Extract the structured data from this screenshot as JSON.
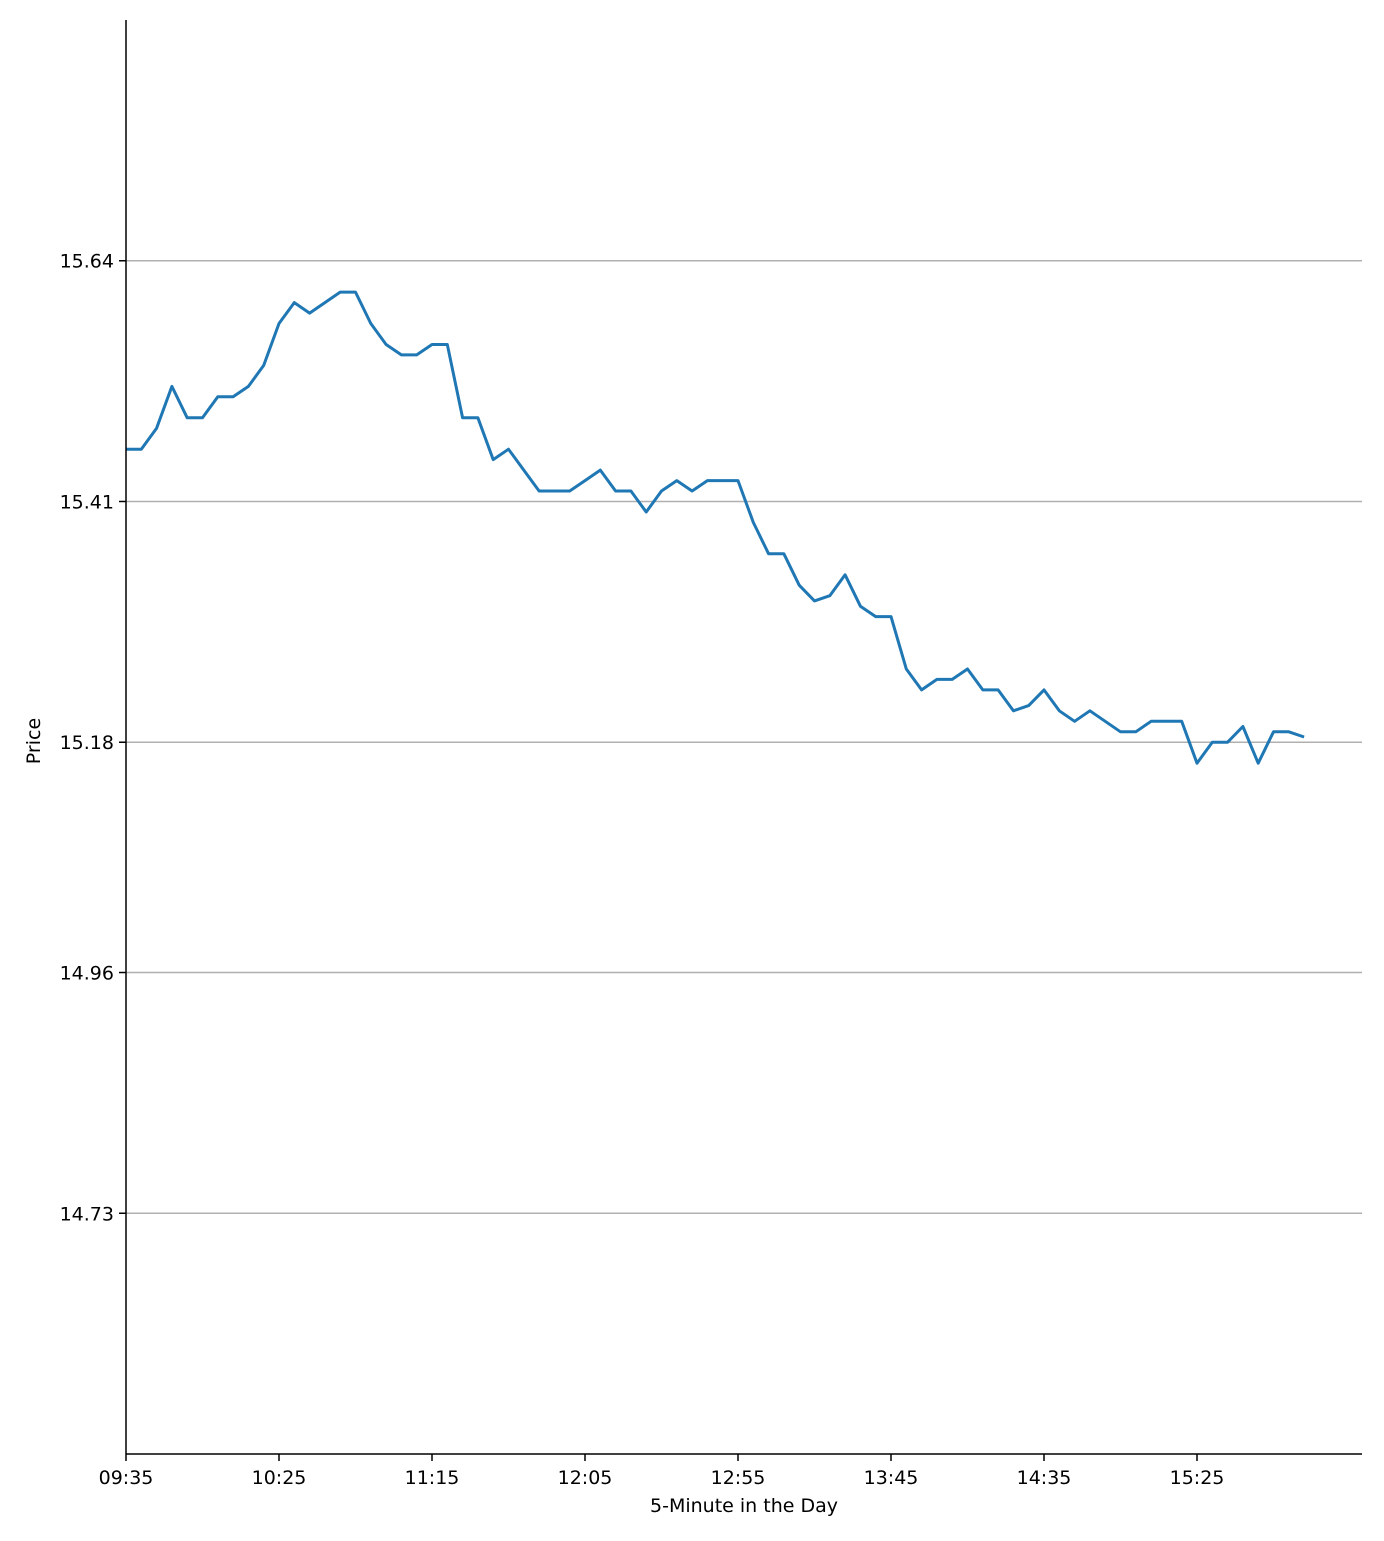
{
  "chart_data": {
    "type": "line",
    "title": "",
    "xlabel": "5-Minute in the Day",
    "ylabel": "Price",
    "grid": "horizontal",
    "ylim": [
      14.5,
      15.87
    ],
    "y_ticks": [
      "14.73",
      "14.96",
      "15.18",
      "15.41",
      "15.64"
    ],
    "x_ticks": [
      "09:35",
      "10:25",
      "11:15",
      "12:05",
      "12:55",
      "13:45",
      "14:35",
      "15:25"
    ],
    "x_tick_index": [
      0,
      10,
      20,
      30,
      40,
      50,
      60,
      70
    ],
    "x_range": [
      0,
      81
    ],
    "line_color": "#1f77b4",
    "series": [
      {
        "x": [
          "09:35",
          "09:40",
          "09:45",
          "09:50",
          "09:55",
          "10:00",
          "10:05",
          "10:10",
          "10:15",
          "10:20",
          "10:25",
          "10:30",
          "10:35",
          "10:40",
          "10:45",
          "10:50",
          "10:55",
          "11:00",
          "11:05",
          "11:10",
          "11:15",
          "11:20",
          "11:25",
          "11:30",
          "11:35",
          "11:40",
          "11:45",
          "11:50",
          "11:55",
          "12:00",
          "12:05",
          "12:10",
          "12:15",
          "12:20",
          "12:25",
          "12:30",
          "12:35",
          "12:40",
          "12:45",
          "12:50",
          "12:55",
          "13:00",
          "13:05",
          "13:10",
          "13:15",
          "13:20",
          "13:25",
          "13:30",
          "13:35",
          "13:40",
          "13:45",
          "13:50",
          "13:55",
          "14:00",
          "14:05",
          "14:10",
          "14:15",
          "14:20",
          "14:25",
          "14:30",
          "14:35",
          "14:40",
          "14:45",
          "14:50",
          "14:55",
          "15:00",
          "15:05",
          "15:10",
          "15:15",
          "15:20",
          "15:25",
          "15:30",
          "15:35",
          "15:40",
          "15:45",
          "15:50",
          "15:55",
          "16:00"
        ],
        "values": [
          15.46,
          15.46,
          15.48,
          15.52,
          15.49,
          15.49,
          15.51,
          15.51,
          15.52,
          15.54,
          15.58,
          15.6,
          15.59,
          15.6,
          15.61,
          15.61,
          15.58,
          15.56,
          15.55,
          15.55,
          15.56,
          15.56,
          15.49,
          15.49,
          15.45,
          15.46,
          15.44,
          15.42,
          15.42,
          15.42,
          15.43,
          15.44,
          15.42,
          15.42,
          15.4,
          15.42,
          15.43,
          15.42,
          15.43,
          15.43,
          15.43,
          15.39,
          15.36,
          15.36,
          15.33,
          15.315,
          15.32,
          15.34,
          15.31,
          15.3,
          15.3,
          15.25,
          15.23,
          15.24,
          15.24,
          15.25,
          15.23,
          15.23,
          15.21,
          15.215,
          15.23,
          15.21,
          15.2,
          15.21,
          15.2,
          15.19,
          15.19,
          15.2,
          15.2,
          15.2,
          15.16,
          15.18,
          15.18,
          15.195,
          15.16,
          15.19,
          15.19,
          15.185
        ]
      }
    ]
  }
}
